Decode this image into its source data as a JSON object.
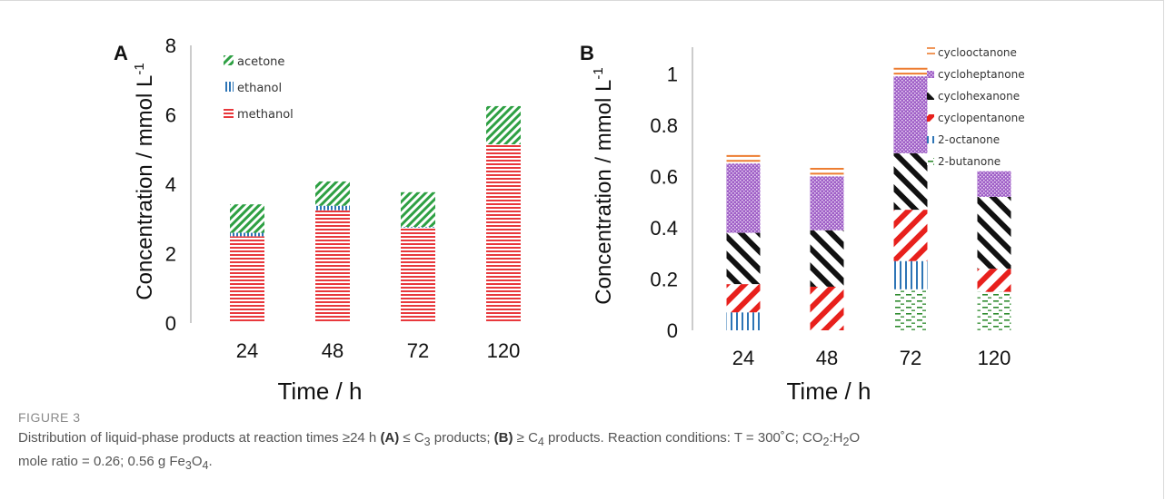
{
  "colors": {
    "methanol": "#e8383c",
    "ethanol": "#2e75b6",
    "acetone": "#2ea043",
    "cyclooctanone": "#ed7d31",
    "cycloheptanone": "#9f5fc7",
    "cyclohexanone": "#111111",
    "cyclopentanone": "#e8201c",
    "octanone": "#2e75b6",
    "butanone": "#2e8b2e"
  },
  "chart_data": [
    {
      "panel": "A",
      "type": "bar",
      "stacked": true,
      "categories": [
        "24",
        "48",
        "72",
        "120"
      ],
      "xlabel": "Time  / h",
      "ylabel": "Concentration / mmol L",
      "ylabel_sup": "-1",
      "ylim": [
        0,
        8
      ],
      "yticks": [
        "0",
        "2",
        "4",
        "6",
        "8"
      ],
      "legend_position": "top-left",
      "series": [
        {
          "name": "methanol",
          "values": [
            2.5,
            3.25,
            2.75,
            5.15
          ]
        },
        {
          "name": "ethanol",
          "values": [
            0.1,
            0.13,
            0.02,
            0.0
          ]
        },
        {
          "name": "acetone",
          "values": [
            0.82,
            0.7,
            1.0,
            1.1
          ]
        }
      ]
    },
    {
      "panel": "B",
      "type": "bar",
      "stacked": true,
      "categories": [
        "24",
        "48",
        "72",
        "120"
      ],
      "xlabel": "Time  / h",
      "ylabel": "Concentration / mmol L",
      "ylabel_sup": "-1",
      "ylim": [
        0,
        1.1
      ],
      "yticks": [
        "0",
        "0.2",
        "0.4",
        "0.6",
        "0.8",
        "1"
      ],
      "legend_position": "top-right",
      "series": [
        {
          "name": "2-butanone",
          "values": [
            0.0,
            0.0,
            0.16,
            0.15
          ]
        },
        {
          "name": "2-octanone",
          "values": [
            0.07,
            0.0,
            0.11,
            0.0
          ]
        },
        {
          "name": "cyclopentanone",
          "values": [
            0.11,
            0.17,
            0.2,
            0.09
          ]
        },
        {
          "name": "cyclohexanone",
          "values": [
            0.2,
            0.22,
            0.22,
            0.28
          ]
        },
        {
          "name": "cycloheptanone",
          "values": [
            0.27,
            0.21,
            0.3,
            0.1
          ]
        },
        {
          "name": "cyclooctanone",
          "values": [
            0.04,
            0.04,
            0.04,
            0.0
          ]
        }
      ]
    }
  ],
  "caption": {
    "label": "FIGURE 3",
    "line1": "Distribution of liquid-phase products at reaction times ≥24 h ",
    "a_tag": "(A)",
    "a_text": " ≤ C",
    "a_sub": "3",
    "a_rest": " products; ",
    "b_tag": "(B)",
    "b_text": " ≥ C",
    "b_sub": "4",
    "b_rest": " products. Reaction conditions: T = 300˚C; CO",
    "co2_sub": "2",
    "h2o": ":H",
    "h2o_sub": "2",
    "h2o_end": "O",
    "line2": "mole ratio = 0.26; 0.56 g Fe",
    "fe_sub": "3",
    "fe_mid": "O",
    "o_sub": "4",
    "end": "."
  }
}
